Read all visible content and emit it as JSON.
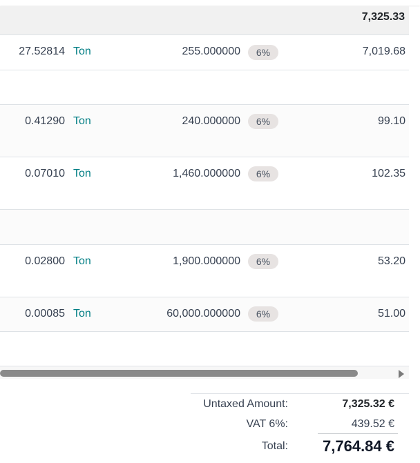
{
  "section_total": "7,325.33",
  "lines": [
    {
      "qty": "27.52814",
      "uom": "Ton",
      "price": "255.000000",
      "tax": "6%",
      "subtotal": "7,019.68"
    },
    {
      "qty": "0.41290",
      "uom": "Ton",
      "price": "240.000000",
      "tax": "6%",
      "subtotal": "99.10"
    },
    {
      "qty": "0.07010",
      "uom": "Ton",
      "price": "1,460.000000",
      "tax": "6%",
      "subtotal": "102.35"
    },
    {
      "qty": "0.02800",
      "uom": "Ton",
      "price": "1,900.000000",
      "tax": "6%",
      "subtotal": "53.20"
    },
    {
      "qty": "0.00085",
      "uom": "Ton",
      "price": "60,000.000000",
      "tax": "6%",
      "subtotal": "51.00"
    }
  ],
  "totals": {
    "untaxed_label": "Untaxed Amount:",
    "untaxed_value": "7,325.32 €",
    "vat_label": "VAT 6%:",
    "vat_value": "439.52 €",
    "total_label": "Total:",
    "total_value": "7,764.84 €"
  }
}
